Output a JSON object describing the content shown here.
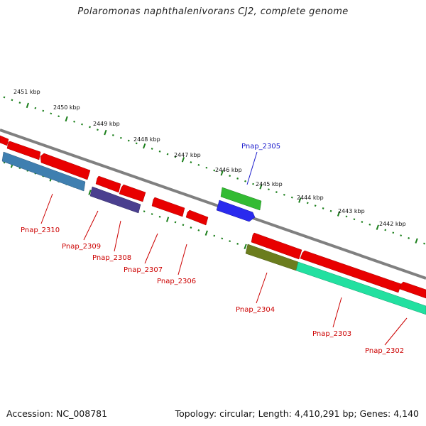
{
  "title": "Polaromonas naphthalenivorans CJ2, complete genome",
  "footer": {
    "accession": "Accession: NC_008781",
    "topology": "Topology: circular; Length: 4,410,291 bp; Genes: 4,140"
  },
  "colors": {
    "backbone": "#808080",
    "tick": "#1b7f1b",
    "label_red": "#cc0000",
    "label_blue": "#1a1acc"
  },
  "kbp_labels": [
    "2451 kbp",
    "2450 kbp",
    "2449 kbp",
    "2448 kbp",
    "2447 kbp",
    "2446 kbp",
    "2445 kbp",
    "2444 kbp",
    "2443 kbp",
    "2442 kbp"
  ],
  "genes": [
    {
      "label": "Pnap_2310",
      "color": "#e80000",
      "lane": "outer-rev"
    },
    {
      "label": "Pnap_2310",
      "color": "#3f7fb0",
      "lane": "far-rev"
    },
    {
      "label": "Pnap_2309",
      "color": "#e80000",
      "lane": "outer-rev"
    },
    {
      "label": "Pnap_2308",
      "color": "#4a3f8f",
      "lane": "inner-rev"
    },
    {
      "label": "Pnap_2307",
      "color": "#e80000",
      "lane": "outer-rev"
    },
    {
      "label": "Pnap_2306",
      "color": "#e80000",
      "lane": "outer-rev"
    },
    {
      "label": "Pnap_2305",
      "color": "#2a2aee",
      "lane": "fwd",
      "label_color": "blue"
    },
    {
      "label": "",
      "color": "#33bb33",
      "lane": "fwd-outer"
    },
    {
      "label": "Pnap_2304",
      "color": "#6b7d1e",
      "lane": "inner-rev"
    },
    {
      "label": "Pnap_2304",
      "color": "#e80000",
      "lane": "outer-rev"
    },
    {
      "label": "Pnap_2303",
      "color": "#e80000",
      "lane": "outer-rev"
    },
    {
      "label": "Pnap_2303",
      "color": "#22e0a0",
      "lane": "inner-rev"
    },
    {
      "label": "Pnap_2302",
      "color": "#e80000",
      "lane": "outer-rev"
    }
  ]
}
